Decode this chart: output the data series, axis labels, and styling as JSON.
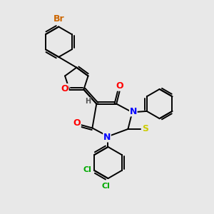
{
  "bg_color": "#e8e8e8",
  "bond_color": "#000000",
  "atom_colors": {
    "O": "#ff0000",
    "N": "#0000ff",
    "S": "#cccc00",
    "Br": "#cc6600",
    "Cl": "#00aa00",
    "H": "#555555",
    "C": "#000000"
  },
  "font_size": 8,
  "line_width": 1.4
}
